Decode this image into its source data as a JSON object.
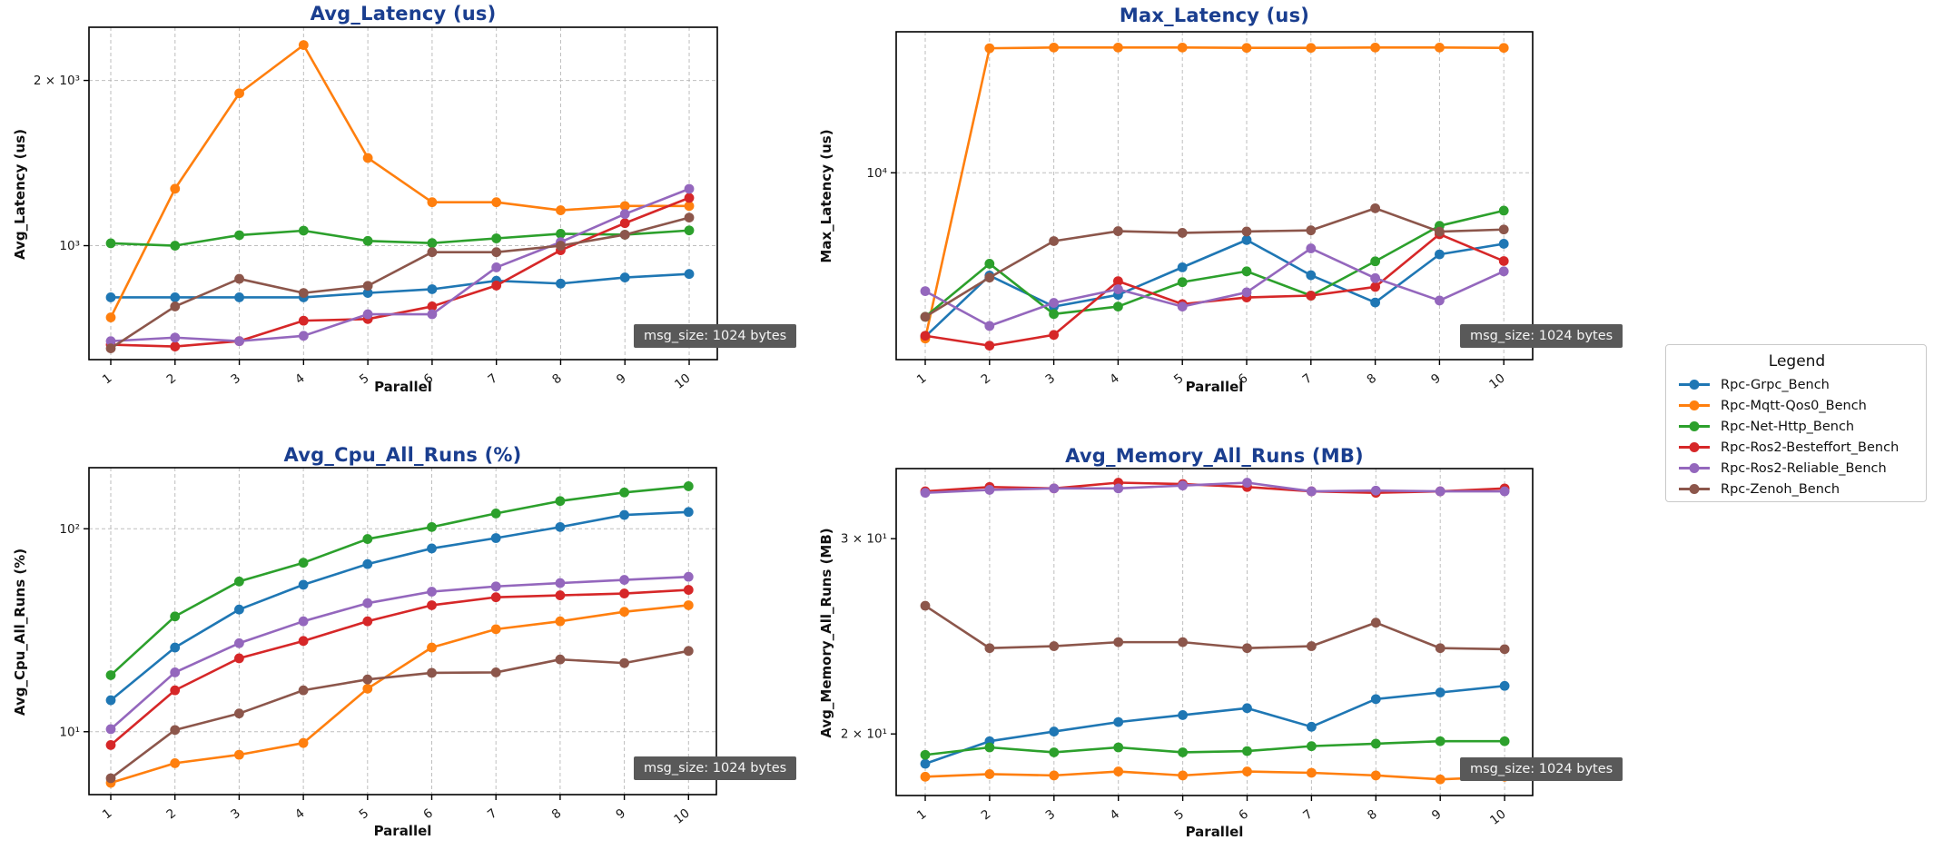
{
  "figure": {
    "background": "#ffffff",
    "title_color": "#1a3e8f",
    "grid_color": "#b3b3b3",
    "annotation_bg": "#595959"
  },
  "legend": {
    "title": "Legend",
    "position": "outside-right",
    "items": [
      {
        "label": "Rpc-Grpc_Bench",
        "color": "#1f77b4"
      },
      {
        "label": "Rpc-Mqtt-Qos0_Bench",
        "color": "#ff7f0e"
      },
      {
        "label": "Rpc-Net-Http_Bench",
        "color": "#2ca02c"
      },
      {
        "label": "Rpc-Ros2-Besteffort_Bench",
        "color": "#d62728"
      },
      {
        "label": "Rpc-Ros2-Reliable_Bench",
        "color": "#9467bd"
      },
      {
        "label": "Rpc-Zenoh_Bench",
        "color": "#8c564b"
      }
    ]
  },
  "chart_data": [
    {
      "type": "line",
      "title": "Avg_Latency (us)",
      "xlabel": "Parallel",
      "ylabel": "Avg_Latency (us)",
      "x": [
        1,
        2,
        3,
        4,
        5,
        6,
        7,
        8,
        9,
        10
      ],
      "x_ticklabels": [
        "1",
        "2",
        "3",
        "4",
        "5",
        "6",
        "7",
        "8",
        "9",
        "10"
      ],
      "yscale": "log",
      "ylim": [
        620,
        2500
      ],
      "yticks": [
        {
          "value": 2000,
          "label": "2 × 10³",
          "grid": true
        },
        {
          "value": 1000,
          "label": "10³",
          "grid": true
        }
      ],
      "grid": "major",
      "annotation": "msg_size: 1024 bytes",
      "series": [
        {
          "name": "Rpc-Grpc_Bench",
          "color": "#1f77b4",
          "values": [
            805,
            805,
            805,
            805,
            820,
            833,
            863,
            853,
            875,
            888
          ]
        },
        {
          "name": "Rpc-Mqtt-Qos0_Bench",
          "color": "#ff7f0e",
          "values": [
            740,
            1270,
            1895,
            2320,
            1445,
            1200,
            1200,
            1160,
            1181,
            1181
          ]
        },
        {
          "name": "Rpc-Net-Http_Bench",
          "color": "#2ca02c",
          "values": [
            1010,
            1000,
            1045,
            1065,
            1020,
            1011,
            1031,
            1051,
            1047,
            1066
          ]
        },
        {
          "name": "Rpc-Ros2-Besteffort_Bench",
          "color": "#d62728",
          "values": [
            660,
            655,
            670,
            730,
            735,
            775,
            846,
            981,
            1099,
            1222
          ]
        },
        {
          "name": "Rpc-Ros2-Reliable_Bench",
          "color": "#9467bd",
          "values": [
            670,
            680,
            670,
            685,
            750,
            750,
            913,
            1015,
            1142,
            1269
          ]
        },
        {
          "name": "Rpc-Zenoh_Bench",
          "color": "#8c564b",
          "values": [
            650,
            775,
            870,
            820,
            845,
            973,
            973,
            1000,
            1047,
            1125
          ]
        }
      ]
    },
    {
      "type": "line",
      "title": "Max_Latency (us)",
      "xlabel": "Parallel",
      "ylabel": "Max_Latency (us)",
      "x": [
        1,
        2,
        3,
        4,
        5,
        6,
        7,
        8,
        9,
        10
      ],
      "x_ticklabels": [
        "1",
        "2",
        "3",
        "4",
        "5",
        "6",
        "7",
        "8",
        "9",
        "10"
      ],
      "yscale": "log",
      "ylim": [
        1020,
        56000
      ],
      "yticks": [
        {
          "value": 10000,
          "label": "10⁴",
          "grid": true
        }
      ],
      "grid": "major",
      "annotation": "msg_size: 1024 bytes",
      "series": [
        {
          "name": "Rpc-Grpc_Bench",
          "color": "#1f77b4",
          "values": [
            1350,
            2850,
            1950,
            2250,
            3150,
            4400,
            2860,
            2050,
            3690,
            4200
          ]
        },
        {
          "name": "Rpc-Mqtt-Qos0_Bench",
          "color": "#ff7f0e",
          "values": [
            1320,
            45800,
            46200,
            46200,
            46200,
            46000,
            46000,
            46200,
            46200,
            46000
          ]
        },
        {
          "name": "Rpc-Net-Http_Bench",
          "color": "#2ca02c",
          "values": [
            1720,
            3290,
            1780,
            1950,
            2630,
            3000,
            2230,
            3390,
            5230,
            6300
          ]
        },
        {
          "name": "Rpc-Ros2-Besteffort_Bench",
          "color": "#d62728",
          "values": [
            1365,
            1210,
            1380,
            2660,
            2010,
            2180,
            2230,
            2480,
            4720,
            3400
          ]
        },
        {
          "name": "Rpc-Ros2-Reliable_Bench",
          "color": "#9467bd",
          "values": [
            2355,
            1540,
            2040,
            2410,
            1950,
            2320,
            3970,
            2760,
            2100,
            3000
          ]
        },
        {
          "name": "Rpc-Zenoh_Bench",
          "color": "#8c564b",
          "values": [
            1720,
            2780,
            4340,
            4900,
            4800,
            4880,
            4950,
            6480,
            4870,
            5000
          ]
        }
      ]
    },
    {
      "type": "line",
      "title": "Avg_Cpu_All_Runs (%)",
      "xlabel": "Parallel",
      "ylabel": "Avg_Cpu_All_Runs (%)",
      "x": [
        1,
        2,
        3,
        4,
        5,
        6,
        7,
        8,
        9,
        10
      ],
      "x_ticklabels": [
        "1",
        "2",
        "3",
        "4",
        "5",
        "6",
        "7",
        "8",
        "9",
        "10"
      ],
      "yscale": "log",
      "ylim": [
        4.9,
        200
      ],
      "yticks": [
        {
          "value": 100,
          "label": "10²",
          "grid": true
        },
        {
          "value": 10,
          "label": "10¹",
          "grid": true
        }
      ],
      "grid": "major",
      "annotation": "msg_size: 1024 bytes",
      "series": [
        {
          "name": "Rpc-Grpc_Bench",
          "color": "#1f77b4",
          "values": [
            14.3,
            26,
            40,
            53,
            67,
            80,
            90,
            102,
            117,
            121
          ]
        },
        {
          "name": "Rpc-Mqtt-Qos0_Bench",
          "color": "#ff7f0e",
          "values": [
            5.6,
            7.0,
            7.7,
            8.8,
            16.3,
            26,
            32,
            35,
            39,
            42
          ]
        },
        {
          "name": "Rpc-Net-Http_Bench",
          "color": "#2ca02c",
          "values": [
            19,
            37,
            55,
            68,
            89,
            102,
            119,
            137,
            151,
            162
          ]
        },
        {
          "name": "Rpc-Ros2-Besteffort_Bench",
          "color": "#d62728",
          "values": [
            8.6,
            16,
            23,
            28,
            35,
            42,
            46,
            47,
            48,
            50
          ]
        },
        {
          "name": "Rpc-Ros2-Reliable_Bench",
          "color": "#9467bd",
          "values": [
            10.3,
            19.6,
            27.3,
            35,
            43,
            49,
            52,
            54,
            56,
            58
          ]
        },
        {
          "name": "Rpc-Zenoh_Bench",
          "color": "#8c564b",
          "values": [
            5.9,
            10.2,
            12.3,
            16,
            18.1,
            19.5,
            19.6,
            22.7,
            21.8,
            25
          ]
        }
      ]
    },
    {
      "type": "line",
      "title": "Avg_Memory_All_Runs (MB)",
      "xlabel": "Parallel",
      "ylabel": "Avg_Memory_All_Runs (MB)",
      "x": [
        1,
        2,
        3,
        4,
        5,
        6,
        7,
        8,
        9,
        10
      ],
      "x_ticklabels": [
        "1",
        "2",
        "3",
        "4",
        "5",
        "6",
        "7",
        "8",
        "9",
        "10"
      ],
      "yscale": "log",
      "ylim": [
        17.6,
        34.7
      ],
      "yticks": [
        {
          "value": 30,
          "label": "3 × 10¹",
          "grid": false
        },
        {
          "value": 20,
          "label": "2 × 10¹",
          "grid": false
        }
      ],
      "grid": "x-major",
      "annotation": "msg_size: 1024 bytes",
      "series": [
        {
          "name": "Rpc-Grpc_Bench",
          "color": "#1f77b4",
          "values": [
            18.8,
            19.7,
            20.1,
            20.5,
            20.8,
            21.1,
            20.3,
            21.5,
            21.8,
            22.1
          ]
        },
        {
          "name": "Rpc-Mqtt-Qos0_Bench",
          "color": "#ff7f0e",
          "values": [
            18.3,
            18.4,
            18.35,
            18.5,
            18.35,
            18.5,
            18.45,
            18.35,
            18.2,
            18.3
          ]
        },
        {
          "name": "Rpc-Net-Http_Bench",
          "color": "#2ca02c",
          "values": [
            19.15,
            19.45,
            19.25,
            19.45,
            19.25,
            19.3,
            19.5,
            19.6,
            19.7,
            19.7
          ]
        },
        {
          "name": "Rpc-Ros2-Besteffort_Bench",
          "color": "#d62728",
          "values": [
            33.1,
            33.4,
            33.3,
            33.7,
            33.6,
            33.4,
            33.1,
            33.0,
            33.1,
            33.3
          ]
        },
        {
          "name": "Rpc-Ros2-Reliable_Bench",
          "color": "#9467bd",
          "values": [
            33.0,
            33.2,
            33.3,
            33.3,
            33.5,
            33.7,
            33.1,
            33.15,
            33.1,
            33.1
          ]
        },
        {
          "name": "Rpc-Zenoh_Bench",
          "color": "#8c564b",
          "values": [
            26.1,
            23.9,
            24.0,
            24.2,
            24.2,
            23.9,
            24.0,
            25.2,
            23.9,
            23.85
          ]
        }
      ]
    }
  ]
}
